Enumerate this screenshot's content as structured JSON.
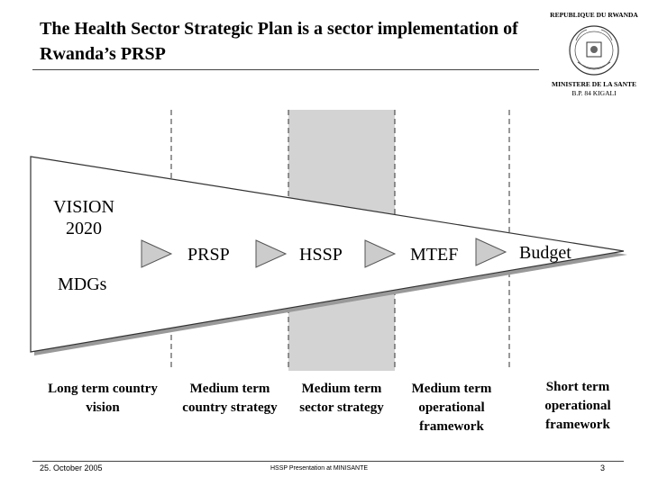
{
  "slide": {
    "title": "The Health Sector Strategic Plan is a sector implementation of Rwanda’s PRSP"
  },
  "seal": {
    "top_text": "REPUBLIQUE DU RWANDA",
    "ministry": "MINISTERE DE LA SANTE",
    "address": "B.P. 84 KIGALI"
  },
  "diagram": {
    "wedge_labels": {
      "vision": "VISION 2020",
      "prsp": "PRSP",
      "hssp": "HSSP",
      "mtef": "MTEF",
      "budget": "Budget",
      "mdgs": "MDGs"
    },
    "columns": [
      {
        "label": "Long term country vision"
      },
      {
        "label": "Medium term country strategy"
      },
      {
        "label": "Medium term sector strategy"
      },
      {
        "label": "Medium term operational framework"
      },
      {
        "label": "Short term operational framework"
      }
    ]
  },
  "footer": {
    "date": "25. October 2005",
    "source": "HSSP Presentation at MINISANTE",
    "page": "3"
  }
}
